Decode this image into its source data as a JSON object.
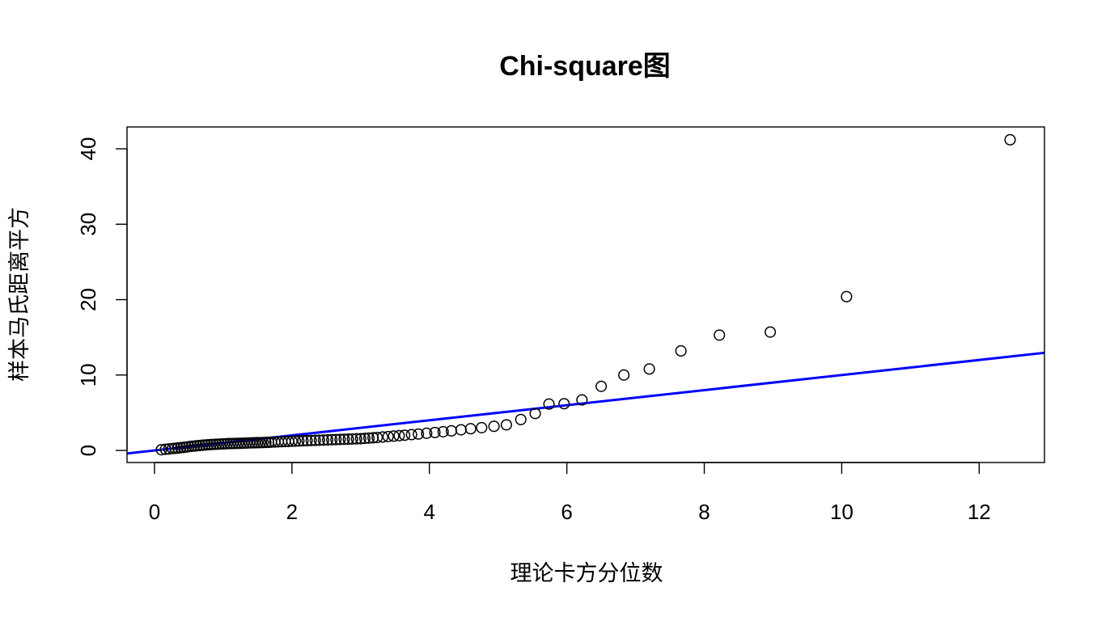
{
  "chart_data": {
    "type": "scatter",
    "title": "Chi-square图",
    "xlabel": "理论卡方分位数",
    "ylabel": "样本马氏距离平方",
    "xlim": [
      -0.4,
      12.95
    ],
    "ylim": [
      -1.6,
      42.9
    ],
    "xticks": [
      0,
      2,
      4,
      6,
      8,
      10,
      12
    ],
    "yticks": [
      0,
      10,
      20,
      30,
      40
    ],
    "grid": false,
    "reference_line": {
      "intercept": 0,
      "slope": 1,
      "color": "#0000ff"
    },
    "series": [
      {
        "x": [
          0.1,
          0.16,
          0.21,
          0.26,
          0.3,
          0.34,
          0.38,
          0.42,
          0.46,
          0.5,
          0.54,
          0.58,
          0.62,
          0.66,
          0.7,
          0.74,
          0.78,
          0.82,
          0.86,
          0.9,
          0.94,
          0.98,
          1.02,
          1.06,
          1.1,
          1.14,
          1.18,
          1.22,
          1.26,
          1.3,
          1.34,
          1.38,
          1.42,
          1.46,
          1.5,
          1.54,
          1.58,
          1.62,
          1.66,
          1.7,
          1.75,
          1.8,
          1.85,
          1.9,
          1.95,
          2.0,
          2.05,
          2.1,
          2.16,
          2.22,
          2.28,
          2.34,
          2.4,
          2.46,
          2.52,
          2.58,
          2.64,
          2.7,
          2.76,
          2.82,
          2.88,
          2.94,
          3.0,
          3.06,
          3.12,
          3.18,
          3.24,
          3.32,
          3.4,
          3.48,
          3.56,
          3.64,
          3.74,
          3.84,
          3.96,
          4.08,
          4.2,
          4.32,
          4.46,
          4.6,
          4.76,
          4.94,
          5.12,
          5.33,
          5.54,
          5.74,
          5.96,
          6.22,
          6.5,
          6.83,
          7.2,
          7.66,
          8.22,
          8.96,
          10.07,
          12.45
        ],
        "y": [
          0.1,
          0.15,
          0.2,
          0.25,
          0.28,
          0.32,
          0.36,
          0.4,
          0.45,
          0.5,
          0.55,
          0.58,
          0.62,
          0.66,
          0.7,
          0.73,
          0.76,
          0.78,
          0.8,
          0.82,
          0.84,
          0.86,
          0.88,
          0.9,
          0.91,
          0.92,
          0.93,
          0.94,
          0.95,
          0.96,
          0.98,
          1.0,
          1.01,
          1.02,
          1.03,
          1.04,
          1.05,
          1.06,
          1.08,
          1.1,
          1.12,
          1.14,
          1.16,
          1.18,
          1.2,
          1.22,
          1.24,
          1.26,
          1.28,
          1.3,
          1.32,
          1.34,
          1.36,
          1.38,
          1.4,
          1.42,
          1.44,
          1.46,
          1.48,
          1.5,
          1.52,
          1.54,
          1.56,
          1.6,
          1.64,
          1.68,
          1.72,
          1.78,
          1.84,
          1.9,
          1.96,
          2.02,
          2.1,
          2.18,
          2.28,
          2.38,
          2.48,
          2.6,
          2.74,
          2.88,
          3.02,
          3.2,
          3.4,
          4.1,
          4.9,
          6.15,
          6.2,
          6.7,
          8.5,
          10.0,
          10.8,
          13.2,
          15.3,
          15.7,
          20.4,
          41.2
        ]
      }
    ]
  }
}
